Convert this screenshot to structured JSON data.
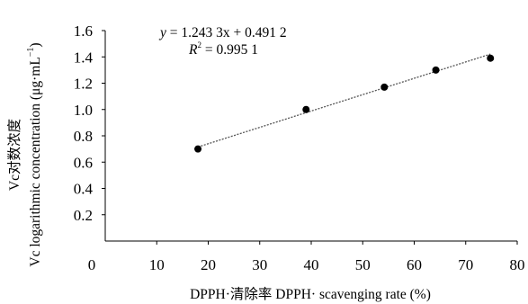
{
  "chart_data": {
    "type": "scatter",
    "x": [
      18.0,
      39.0,
      54.2,
      64.2,
      74.8
    ],
    "y": [
      0.7,
      1.0,
      1.17,
      1.3,
      1.39
    ],
    "trendline": {
      "slope": 1.2433,
      "intercept": 0.4912
    },
    "equation": {
      "y_var": "y",
      "rhs": " = 1.243 3x + 0.491 2",
      "r_var": "R",
      "r_sup": "2",
      "r_rhs": " = 0.995 1"
    },
    "xlabel": "DPPH·清除率  DPPH·  scavenging rate (%)",
    "ylabel_cn": "Vc对数浓度",
    "ylabel_en": "Vc logarithmic concentration (μg·mL",
    "ylabel_sup": "−1",
    "ylabel_end": ")",
    "xlim": [
      0,
      80
    ],
    "ylim": [
      0,
      1.6
    ],
    "xticks": [
      "0",
      "10",
      "20",
      "30",
      "40",
      "50",
      "60",
      "70",
      "80"
    ],
    "yticks": [
      "0.2",
      "0.4",
      "0.6",
      "0.8",
      "1.0",
      "1.2",
      "1.4",
      "1.6"
    ],
    "colors": {
      "marker": "#000000",
      "trendline": "#555555",
      "axis": "#000000"
    }
  }
}
